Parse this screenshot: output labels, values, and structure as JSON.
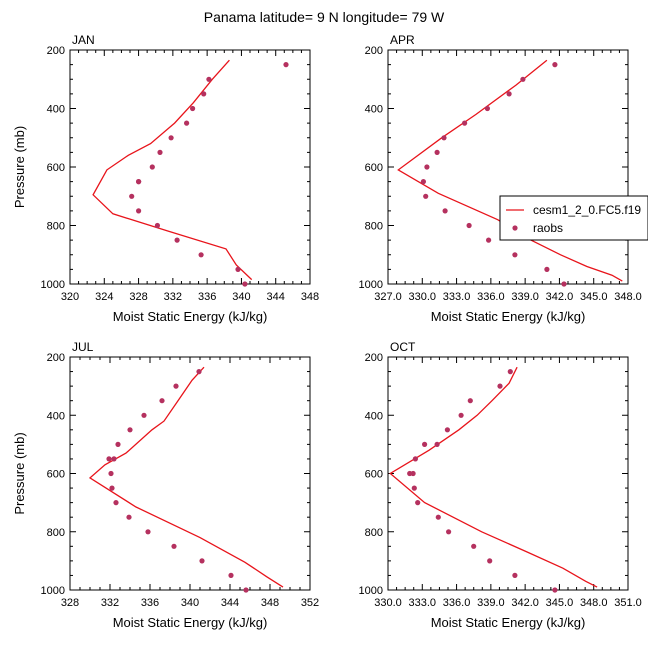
{
  "title": "Panama  latitude= 9 N longitude= 79 W",
  "colors": {
    "model_line": "#e8141b",
    "obs_marker": "#b5315f",
    "axis": "#000000"
  },
  "chart_data": [
    {
      "type": "line",
      "panel": "JAN",
      "xlabel": "Moist Static Energy (kJ/kg)",
      "ylabel": "Pressure (mb)",
      "xlim": [
        320,
        348
      ],
      "ylim": [
        200,
        1000
      ],
      "y_reversed": true,
      "xticks": [
        "320",
        "324",
        "328",
        "332",
        "336",
        "340",
        "344",
        "348"
      ],
      "yticks": [
        "200",
        "400",
        "600",
        "800",
        "1000"
      ],
      "series": [
        {
          "name": "",
          "kind": "line",
          "x": [
            338.6,
            336.6,
            334.4,
            332.2,
            329.4,
            326.8,
            324.3,
            322.7,
            325.0,
            331.5,
            338.2,
            339.4,
            341.2
          ],
          "y": [
            235,
            300,
            380,
            450,
            520,
            560,
            610,
            695,
            760,
            820,
            880,
            935,
            985
          ]
        },
        {
          "name": "",
          "kind": "marker",
          "x": [
            345.2,
            336.2,
            335.6,
            334.3,
            333.6,
            331.8,
            330.5,
            329.6,
            328.0,
            328.0,
            327.2,
            328.0,
            330.2,
            332.5,
            335.3,
            339.6,
            340.4
          ],
          "y": [
            250,
            300,
            350,
            400,
            450,
            500,
            550,
            600,
            650,
            650,
            700,
            750,
            800,
            850,
            900,
            950,
            1000
          ]
        }
      ]
    },
    {
      "type": "line",
      "panel": "APR",
      "xlabel": "Moist Static Energy (kJ/kg)",
      "ylabel": "",
      "xlim": [
        327,
        348
      ],
      "ylim": [
        200,
        1000
      ],
      "y_reversed": true,
      "xticks": [
        "327.0",
        "330.0",
        "333.0",
        "336.0",
        "339.0",
        "342.0",
        "345.0",
        "348.0"
      ],
      "yticks": [
        "200",
        "400",
        "600",
        "800",
        "1000"
      ],
      "legend": [
        "cesm1_2_0.FC5.f19",
        "raobs"
      ],
      "series": [
        {
          "name": "cesm1_2_0.FC5.f19",
          "kind": "line",
          "x": [
            340.9,
            338.2,
            334.7,
            331.7,
            327.9,
            331.4,
            336.6,
            339.5,
            342.1,
            344.4,
            346.6,
            347.5
          ],
          "y": [
            235,
            320,
            420,
            500,
            610,
            690,
            780,
            850,
            900,
            940,
            970,
            990
          ]
        },
        {
          "name": "raobs",
          "kind": "marker",
          "x": [
            341.6,
            338.8,
            337.6,
            335.7,
            333.7,
            331.9,
            331.3,
            330.4,
            330.1,
            330.3,
            332.0,
            334.1,
            335.8,
            338.1,
            340.9,
            342.4
          ],
          "y": [
            250,
            300,
            350,
            400,
            450,
            500,
            550,
            600,
            650,
            700,
            750,
            800,
            850,
            900,
            950,
            1000
          ]
        }
      ]
    },
    {
      "type": "line",
      "panel": "JUL",
      "xlabel": "Moist Static Energy (kJ/kg)",
      "ylabel": "Pressure (mb)",
      "xlim": [
        328,
        352
      ],
      "ylim": [
        200,
        1000
      ],
      "y_reversed": true,
      "xticks": [
        "328",
        "332",
        "336",
        "340",
        "344",
        "348",
        "352"
      ],
      "yticks": [
        "200",
        "400",
        "600",
        "800",
        "1000"
      ],
      "series": [
        {
          "name": "",
          "kind": "line",
          "x": [
            341.4,
            340.2,
            338.8,
            337.4,
            336.2,
            333.6,
            331.5,
            330.0,
            334.6,
            341.0,
            345.5,
            347.7,
            349.3
          ],
          "y": [
            235,
            280,
            350,
            420,
            450,
            530,
            570,
            615,
            715,
            820,
            905,
            955,
            990
          ]
        },
        {
          "name": "",
          "kind": "marker",
          "x": [
            340.9,
            338.6,
            337.2,
            335.4,
            334.0,
            332.8,
            332.4,
            331.9,
            332.1,
            332.2,
            332.6,
            333.9,
            335.8,
            338.4,
            341.2,
            344.1,
            345.6
          ],
          "y": [
            250,
            300,
            350,
            400,
            450,
            500,
            550,
            550,
            600,
            650,
            700,
            750,
            800,
            850,
            900,
            950,
            1000
          ]
        }
      ]
    },
    {
      "type": "line",
      "panel": "OCT",
      "xlabel": "Moist Static Energy (kJ/kg)",
      "ylabel": "",
      "xlim": [
        330,
        351
      ],
      "ylim": [
        200,
        1000
      ],
      "y_reversed": true,
      "xticks": [
        "330.0",
        "333.0",
        "336.0",
        "339.0",
        "342.0",
        "345.0",
        "348.0",
        "351.0"
      ],
      "yticks": [
        "200",
        "400",
        "600",
        "800",
        "1000"
      ],
      "series": [
        {
          "name": "",
          "kind": "line",
          "x": [
            341.3,
            340.6,
            339.1,
            337.8,
            336.2,
            333.6,
            330.2,
            333.2,
            338.2,
            342.2,
            345.3,
            347.3,
            348.3
          ],
          "y": [
            235,
            290,
            350,
            400,
            450,
            520,
            600,
            700,
            800,
            870,
            925,
            970,
            990
          ]
        },
        {
          "name": "",
          "kind": "marker",
          "x": [
            340.7,
            339.8,
            337.2,
            336.4,
            335.2,
            334.3,
            333.2,
            332.4,
            331.9,
            332.2,
            332.3,
            332.6,
            334.4,
            335.3,
            337.5,
            338.9,
            341.1,
            344.6
          ],
          "y": [
            250,
            300,
            350,
            400,
            450,
            500,
            500,
            550,
            600,
            600,
            650,
            700,
            750,
            800,
            850,
            900,
            950,
            1000
          ]
        }
      ]
    }
  ]
}
